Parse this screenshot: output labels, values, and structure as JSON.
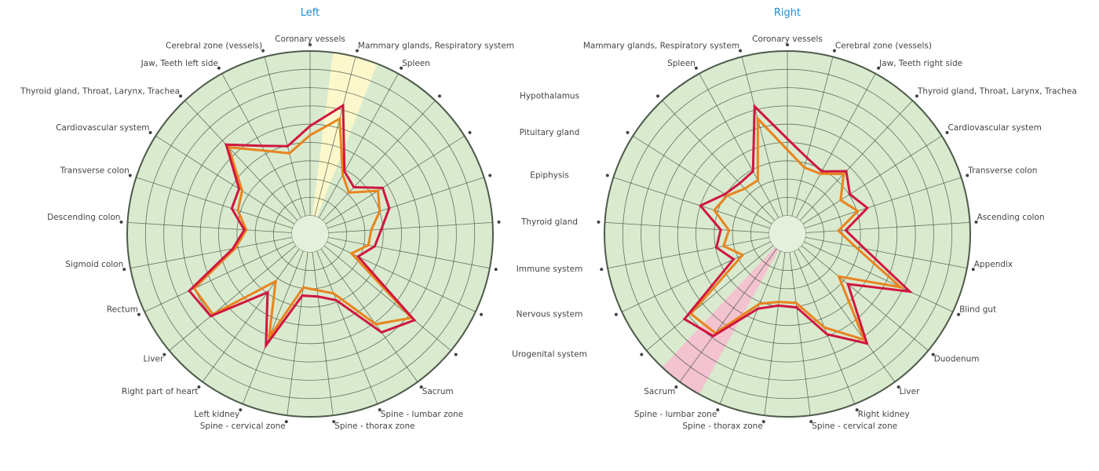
{
  "colors": {
    "background": "#d9eacf",
    "ring": "#3c4a3a",
    "outline": "#555555",
    "series_red": "#d0163f",
    "series_orange": "#e8841e",
    "highlight_yellow": "#fdf7cc",
    "highlight_pink": "#f3c3d0",
    "title": "#1e8fd5"
  },
  "chart_data": [
    {
      "type": "radar",
      "title": "Left",
      "rlim": [
        0,
        10
      ],
      "rings": 10,
      "grid": true,
      "highlight_axis": 1,
      "highlight_color": "#fdf7cc",
      "axes": [
        "Coronary vessels",
        "Mammary glands, Respiratory system",
        "Spleen",
        "",
        "",
        "",
        "",
        "",
        "",
        "",
        "Sacrum",
        "Spine - lumbar zone",
        "Spine - thorax zone",
        "Spine - cervical zone",
        "Left kidney",
        "Right part of heart",
        "Liver",
        "Rectum",
        "Sigmoid colon",
        "Descending colon",
        "Transverse colon",
        "Cardiovascular system",
        "Thyroid gland, Throat, Larynx, Trachea",
        "Jaw, Teeth left side",
        "Cerebral zone (vessels)"
      ],
      "series": [
        {
          "color": "#e8841e",
          "values": [
            5.4,
            6.5,
            3.7,
            3.1,
            4.4,
            4.0,
            3.35,
            3.25,
            2.5,
            7.2,
            6.1,
            3.5,
            3.1,
            2.95,
            6.1,
            3.2,
            6.9,
            7.0,
            4.15,
            3.5,
            4.15,
            4.4,
            6.5,
            5.2,
            4.55
          ]
        },
        {
          "color": "#d0163f",
          "values": [
            5.9,
            7.25,
            3.9,
            3.5,
            4.7,
            4.55,
            3.9,
            3.6,
            2.9,
            7.4,
            6.65,
            3.9,
            3.45,
            3.4,
            6.55,
            3.95,
            7.05,
            7.3,
            4.3,
            3.6,
            4.5,
            4.6,
            6.7,
            5.5,
            4.95
          ]
        }
      ]
    },
    {
      "type": "radar",
      "title": "Right",
      "rlim": [
        0,
        10
      ],
      "rings": 10,
      "grid": true,
      "highlight_axis": 15,
      "highlight_color": "#f3c3d0",
      "axes": [
        "Coronary vessels",
        "Cerebral zone (vessels)",
        "Jaw, Teeth right side",
        "Thyroid gland, Throat, Larynx, Trachea",
        "Cardiovascular system",
        "Transverse colon",
        "Ascending colon",
        "Appendix",
        "Blind gut",
        "Duodenum",
        "Liver",
        "Right kidney",
        "Spine - cervical zone",
        "Spine - thorax zone",
        "Spine - lumbar zone",
        "Sacrum",
        "Urogenital system",
        "Nervous system",
        "Immune system",
        "Thyroid gland",
        "Epiphysis",
        "Pituitary gland",
        "Hypothalamus",
        "Spleen",
        "Mammary glands, Respiratory system"
      ],
      "series": [
        {
          "color": "#e8841e",
          "values": [
            4.6,
            3.75,
            3.75,
            4.5,
            3.45,
            4.05,
            2.8,
            3.8,
            6.85,
            3.65,
            7.15,
            5.5,
            3.8,
            3.75,
            4.1,
            6.7,
            6.85,
            2.7,
            3.55,
            3.2,
            4.2,
            3.9,
            3.4,
            3.35,
            6.5
          ]
        },
        {
          "color": "#d0163f",
          "values": [
            5.2,
            4.3,
            3.9,
            4.7,
            4.05,
            4.6,
            3.2,
            4.3,
            7.4,
            4.3,
            7.4,
            5.9,
            4.05,
            3.95,
            4.4,
            6.9,
            7.3,
            3.25,
            3.95,
            3.65,
            5.0,
            4.05,
            3.8,
            3.9,
            7.2
          ]
        }
      ]
    }
  ]
}
